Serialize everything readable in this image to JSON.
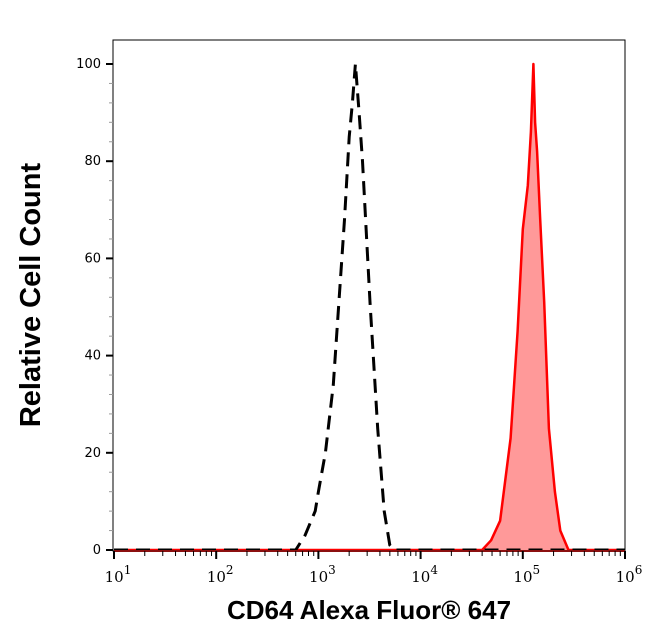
{
  "chart_data": {
    "type": "line",
    "title": "",
    "xlabel": "CD64 Alexa Fluor® 647",
    "ylabel": "Relative Cell Count",
    "xscale": "log",
    "xlim": [
      10,
      1000000
    ],
    "ylim": [
      0,
      100
    ],
    "x_tick_labels": [
      {
        "base": "10",
        "exp": "1",
        "value": 10
      },
      {
        "base": "10",
        "exp": "2",
        "value": 100
      },
      {
        "base": "10",
        "exp": "3",
        "value": 1000
      },
      {
        "base": "10",
        "exp": "4",
        "value": 10000
      },
      {
        "base": "10",
        "exp": "5",
        "value": 100000
      },
      {
        "base": "10",
        "exp": "6",
        "value": 1000000
      }
    ],
    "y_ticks": [
      0,
      20,
      40,
      60,
      80,
      100
    ],
    "grid": false,
    "series": [
      {
        "style": "dashed",
        "color": "#000000",
        "fill": "none",
        "points": [
          [
            10,
            0
          ],
          [
            500,
            0
          ],
          [
            600,
            0
          ],
          [
            740,
            3
          ],
          [
            930,
            8
          ],
          [
            1000,
            12
          ],
          [
            1170,
            20
          ],
          [
            1400,
            34
          ],
          [
            1800,
            68
          ],
          [
            2000,
            85
          ],
          [
            2150,
            92
          ],
          [
            2300,
            100
          ],
          [
            2500,
            90
          ],
          [
            2700,
            80
          ],
          [
            3200,
            51
          ],
          [
            3800,
            25
          ],
          [
            4400,
            8
          ],
          [
            5000,
            1
          ],
          [
            5500,
            0
          ],
          [
            1000000,
            0
          ]
        ]
      },
      {
        "style": "solid",
        "color": "#ff0000",
        "fill": "#ff9999",
        "points": [
          [
            10,
            0
          ],
          [
            40000,
            0
          ],
          [
            49000,
            2
          ],
          [
            60000,
            6
          ],
          [
            76000,
            23
          ],
          [
            89000,
            45
          ],
          [
            100000,
            66
          ],
          [
            112000,
            75
          ],
          [
            120000,
            86
          ],
          [
            127000,
            100
          ],
          [
            132000,
            88
          ],
          [
            138000,
            82
          ],
          [
            148000,
            68
          ],
          [
            162000,
            51
          ],
          [
            180000,
            25
          ],
          [
            206000,
            12
          ],
          [
            233000,
            4
          ],
          [
            280000,
            0
          ],
          [
            1000000,
            0
          ]
        ]
      }
    ]
  }
}
